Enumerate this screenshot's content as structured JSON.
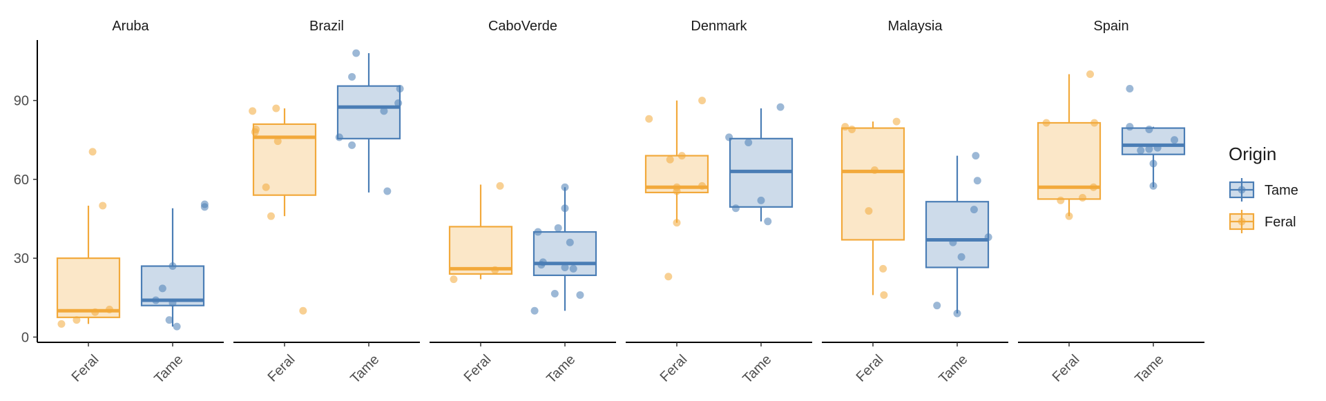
{
  "chart_data": {
    "type": "boxplot",
    "y_ticks": [
      0,
      30,
      60,
      90
    ],
    "ylim": [
      -2,
      113
    ],
    "categories": [
      "Feral",
      "Tame"
    ],
    "legend": {
      "title": "Origin",
      "placement": "right",
      "items": [
        {
          "label": "Tame",
          "color": "#4a7db5"
        },
        {
          "label": "Feral",
          "color": "#f2a93b"
        }
      ]
    },
    "colors": {
      "Feral": "#f2a93b",
      "Tame": "#4a7db5"
    },
    "facets": [
      {
        "name": "Aruba",
        "groups": [
          {
            "category": "Feral",
            "whisker_low": 5,
            "q1": 7.5,
            "median": 10,
            "q3": 30,
            "whisker_high": 50,
            "points": [
              [
                -0.32,
                5
              ],
              [
                -0.14,
                6.5
              ],
              [
                0.08,
                9.5
              ],
              [
                0.25,
                10.5
              ],
              [
                0.05,
                70.5
              ],
              [
                0.17,
                50
              ]
            ]
          },
          {
            "category": "Tame",
            "whisker_low": 4,
            "q1": 12,
            "median": 14,
            "q3": 27,
            "whisker_high": 49,
            "points": [
              [
                -0.2,
                14
              ],
              [
                -0.12,
                18.5
              ],
              [
                -0.04,
                6.5
              ],
              [
                0.0,
                27
              ],
              [
                0.0,
                13
              ],
              [
                0.05,
                4
              ],
              [
                0.38,
                49.5
              ],
              [
                0.38,
                50.5
              ]
            ]
          }
        ]
      },
      {
        "name": "Brazil",
        "groups": [
          {
            "category": "Feral",
            "whisker_low": 46,
            "q1": 54,
            "median": 76,
            "q3": 81,
            "whisker_high": 87,
            "points": [
              [
                -0.38,
                86
              ],
              [
                -0.35,
                78
              ],
              [
                -0.34,
                79
              ],
              [
                -0.22,
                57
              ],
              [
                -0.16,
                46
              ],
              [
                -0.1,
                87
              ],
              [
                -0.08,
                74.5
              ],
              [
                0.22,
                10
              ]
            ]
          },
          {
            "category": "Tame",
            "whisker_low": 55,
            "q1": 75.5,
            "median": 87.5,
            "q3": 95.5,
            "whisker_high": 108,
            "points": [
              [
                -0.35,
                76
              ],
              [
                -0.2,
                73
              ],
              [
                -0.2,
                99
              ],
              [
                -0.15,
                108
              ],
              [
                0.18,
                86
              ],
              [
                0.22,
                55.5
              ],
              [
                0.35,
                89
              ],
              [
                0.37,
                94.5
              ]
            ]
          }
        ]
      },
      {
        "name": "CaboVerde",
        "groups": [
          {
            "category": "Feral",
            "whisker_low": 22,
            "q1": 24,
            "median": 26,
            "q3": 42,
            "whisker_high": 58,
            "points": [
              [
                -0.32,
                22
              ],
              [
                0.17,
                25.5
              ],
              [
                0.23,
                57.5
              ]
            ]
          },
          {
            "category": "Tame",
            "whisker_low": 10,
            "q1": 23.5,
            "median": 28,
            "q3": 40,
            "whisker_high": 57,
            "points": [
              [
                -0.36,
                10
              ],
              [
                -0.32,
                40
              ],
              [
                -0.28,
                27.5
              ],
              [
                -0.26,
                28.5
              ],
              [
                -0.12,
                16.5
              ],
              [
                -0.08,
                41.5
              ],
              [
                0.0,
                49
              ],
              [
                0.0,
                57
              ],
              [
                0.0,
                26.5
              ],
              [
                0.06,
                36
              ],
              [
                0.1,
                26
              ],
              [
                0.18,
                16
              ]
            ]
          }
        ]
      },
      {
        "name": "Denmark",
        "groups": [
          {
            "category": "Feral",
            "whisker_low": 43.5,
            "q1": 55,
            "median": 57,
            "q3": 69,
            "whisker_high": 90,
            "points": [
              [
                -0.33,
                83
              ],
              [
                -0.1,
                23
              ],
              [
                -0.08,
                67.5
              ],
              [
                0.0,
                57
              ],
              [
                0.0,
                55.5
              ],
              [
                0.0,
                43.5
              ],
              [
                0.06,
                69
              ],
              [
                0.3,
                57.5
              ],
              [
                0.3,
                90
              ]
            ]
          },
          {
            "category": "Tame",
            "whisker_low": 44,
            "q1": 49.5,
            "median": 63,
            "q3": 75.5,
            "whisker_high": 87,
            "points": [
              [
                -0.38,
                76
              ],
              [
                -0.3,
                49
              ],
              [
                -0.15,
                74
              ],
              [
                0.0,
                52
              ],
              [
                0.08,
                44
              ],
              [
                0.23,
                87.5
              ]
            ]
          }
        ]
      },
      {
        "name": "Malaysia",
        "groups": [
          {
            "category": "Feral",
            "whisker_low": 16,
            "q1": 37,
            "median": 63,
            "q3": 79.5,
            "whisker_high": 82,
            "points": [
              [
                -0.33,
                80
              ],
              [
                -0.25,
                79
              ],
              [
                -0.05,
                48
              ],
              [
                0.02,
                63.5
              ],
              [
                0.12,
                26
              ],
              [
                0.13,
                16
              ],
              [
                0.28,
                82
              ]
            ]
          },
          {
            "category": "Tame",
            "whisker_low": 9,
            "q1": 26.5,
            "median": 37,
            "q3": 51.5,
            "whisker_high": 69,
            "points": [
              [
                -0.24,
                12
              ],
              [
                -0.05,
                36
              ],
              [
                0.0,
                9
              ],
              [
                0.05,
                30.5
              ],
              [
                0.2,
                48.5
              ],
              [
                0.22,
                69
              ],
              [
                0.24,
                59.5
              ],
              [
                0.37,
                38
              ]
            ]
          }
        ]
      },
      {
        "name": "Spain",
        "groups": [
          {
            "category": "Feral",
            "whisker_low": 46,
            "q1": 52.5,
            "median": 57,
            "q3": 81.5,
            "whisker_high": 100,
            "points": [
              [
                -0.27,
                81.5
              ],
              [
                -0.1,
                52
              ],
              [
                0.0,
                46
              ],
              [
                0.16,
                53
              ],
              [
                0.25,
                100
              ],
              [
                0.29,
                57
              ],
              [
                0.3,
                81.5
              ]
            ]
          },
          {
            "category": "Tame",
            "whisker_low": 57,
            "q1": 69.5,
            "median": 73,
            "q3": 79.5,
            "whisker_high": 80,
            "points": [
              [
                -0.28,
                94.5
              ],
              [
                -0.28,
                80
              ],
              [
                -0.15,
                71
              ],
              [
                -0.05,
                71.5
              ],
              [
                -0.05,
                79
              ],
              [
                0.0,
                57.5
              ],
              [
                0.0,
                66
              ],
              [
                0.05,
                72
              ],
              [
                0.25,
                75
              ]
            ]
          }
        ]
      }
    ]
  }
}
